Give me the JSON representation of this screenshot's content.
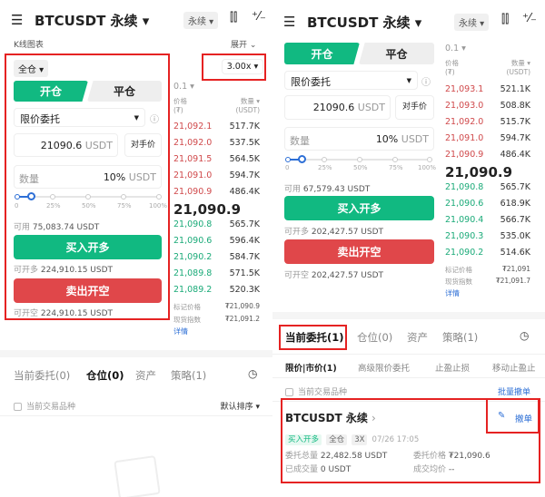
{
  "colors": {
    "buy": "#11b981",
    "sell": "#e0474a",
    "ask": "#d0494b",
    "bid": "#1aaa78",
    "highlight": "#e52222",
    "link": "#2d6fd6"
  },
  "left": {
    "header": {
      "title": "BTCUSDT 永续",
      "type_select": "永续",
      "icons": [
        "menu-icon",
        "candlestick-icon",
        "plus-minus-icon"
      ]
    },
    "kline_label": "K线图表",
    "expand_label": "展开",
    "margin_mode": "全仓",
    "leverage": "3.00x",
    "tabs": {
      "open": "开仓",
      "close": "平仓"
    },
    "order_type": "限价委托",
    "price": {
      "value": "21090.6",
      "unit": "USDT",
      "counter_label": "对手价"
    },
    "qty": {
      "placeholder": "数量",
      "pct": "10%",
      "unit": "USDT"
    },
    "slider": {
      "value_pct": 0.1,
      "labels": [
        "0",
        "25%",
        "50%",
        "75%",
        "100%"
      ]
    },
    "available": {
      "label": "可用",
      "value": "75,083.74 USDT"
    },
    "buy_label": "买入开多",
    "can_long": {
      "label": "可开多",
      "value": "224,910.15 USDT"
    },
    "sell_label": "卖出开空",
    "can_short": {
      "label": "可开空",
      "value": "224,910.15 USDT"
    },
    "book": {
      "precision": "0.1",
      "price_header": "价格",
      "price_unit": "(₮)",
      "qty_header": "数量",
      "qty_unit": "(USDT)",
      "asks": [
        [
          "21,092.1",
          "517.7K"
        ],
        [
          "21,092.0",
          "537.5K"
        ],
        [
          "21,091.5",
          "564.5K"
        ],
        [
          "21,091.0",
          "594.7K"
        ],
        [
          "21,090.9",
          "486.4K"
        ]
      ],
      "mid": "21,090.9",
      "bids": [
        [
          "21,090.8",
          "565.7K"
        ],
        [
          "21,090.6",
          "596.4K"
        ],
        [
          "21,090.2",
          "584.7K"
        ],
        [
          "21,089.8",
          "571.5K"
        ],
        [
          "21,089.2",
          "520.3K"
        ]
      ],
      "mark_label": "标记价格",
      "mark_value": "₮21,090.9",
      "index_label": "现货指数",
      "index_value": "₮21,091.2",
      "detail": "详情"
    },
    "bottom_tabs": [
      "当前委托(0)",
      "仓位(0)",
      "资产",
      "策略(1)"
    ],
    "filter_label": "当前交易品种",
    "sort_label": "默认排序"
  },
  "right": {
    "header": {
      "title": "BTCUSDT 永续",
      "type_select": "永续"
    },
    "tabs": {
      "open": "开仓",
      "close": "平仓"
    },
    "order_type": "限价委托",
    "price": {
      "value": "21090.6",
      "unit": "USDT",
      "counter_label": "对手价"
    },
    "qty": {
      "placeholder": "数量",
      "pct": "10%",
      "unit": "USDT"
    },
    "slider": {
      "value_pct": 0.1,
      "labels": [
        "0",
        "25%",
        "50%",
        "75%",
        "100%"
      ]
    },
    "available": {
      "label": "可用",
      "value": "67,579.43 USDT"
    },
    "buy_label": "买入开多",
    "can_long": {
      "label": "可开多",
      "value": "202,427.57 USDT"
    },
    "sell_label": "卖出开空",
    "can_short": {
      "label": "可开空",
      "value": "202,427.57 USDT"
    },
    "book": {
      "precision": "0.1",
      "price_header": "价格",
      "price_unit": "(₮)",
      "qty_header": "数量",
      "qty_unit": "(USDT)",
      "asks": [
        [
          "21,093.1",
          "521.1K"
        ],
        [
          "21,093.0",
          "508.8K"
        ],
        [
          "21,092.0",
          "515.7K"
        ],
        [
          "21,091.0",
          "594.7K"
        ],
        [
          "21,090.9",
          "486.4K"
        ]
      ],
      "mid": "21,090.9",
      "bids": [
        [
          "21,090.8",
          "565.7K"
        ],
        [
          "21,090.6",
          "618.9K"
        ],
        [
          "21,090.4",
          "566.7K"
        ],
        [
          "21,090.3",
          "535.0K"
        ],
        [
          "21,090.2",
          "514.6K"
        ]
      ],
      "mark_label": "标记价格",
      "mark_value": "₮21,091",
      "index_label": "现货指数",
      "index_value": "₮21,091.7",
      "detail": "详情"
    },
    "bottom_tabs": [
      "当前委托(1)",
      "仓位(0)",
      "资产",
      "策略(1)"
    ],
    "sub_tabs": [
      "限价|市价(1)",
      "高级限价委托",
      "止盈止损",
      "移动止盈止"
    ],
    "filter_label": "当前交易品种",
    "batch_cancel": "批量撤单",
    "order": {
      "title": "BTCUSDT 永续",
      "side": "买入开多",
      "mode": "全仓",
      "leverage": "3X",
      "time": "07/26 17:05",
      "total_label": "委托总量",
      "total_value": "22,482.58 USDT",
      "price_label": "委托价格",
      "price_value": "₮21,090.6",
      "filled_label": "已成交量",
      "filled_value": "0 USDT",
      "avg_label": "成交均价",
      "avg_value": "--",
      "cancel": "撤单"
    }
  }
}
